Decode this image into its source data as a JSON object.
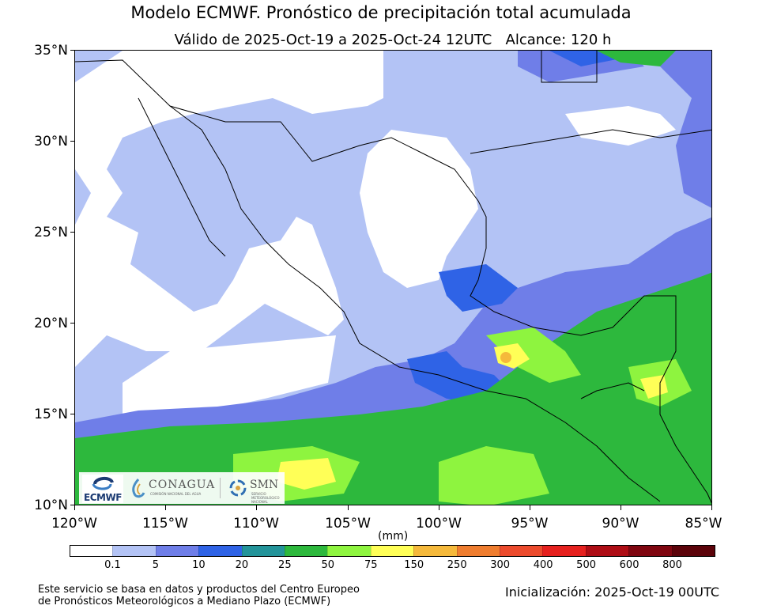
{
  "header": {
    "title": "Modelo ECMWF. Pronóstico de precipitación total acumulada",
    "subtitle": "Válido de 2025-Oct-19 a 2025-Oct-24 12UTC   Alcance: 120 h"
  },
  "axes": {
    "lat_ticks": [
      "35°N",
      "30°N",
      "25°N",
      "20°N",
      "15°N",
      "10°N"
    ],
    "lon_ticks": [
      "120°W",
      "115°W",
      "110°W",
      "105°W",
      "100°W",
      "95°W",
      "90°W",
      "85°W"
    ],
    "lat_range": [
      10,
      35
    ],
    "lon_range": [
      -120,
      -85
    ]
  },
  "colorbar": {
    "units": "(mm)",
    "levels": [
      "0.1",
      "5",
      "10",
      "20",
      "25",
      "50",
      "75",
      "150",
      "250",
      "300",
      "400",
      "500",
      "600",
      "800"
    ],
    "colors": [
      "#ffffff",
      "#b3c3f5",
      "#6f7ee8",
      "#2f63e6",
      "#23949a",
      "#2db83d",
      "#8ef43f",
      "#ffff57",
      "#f5b93b",
      "#ef7d2f",
      "#ec4b2d",
      "#e6211f",
      "#ae0d15",
      "#7f0610",
      "#5c030a"
    ]
  },
  "logos": {
    "ecmwf": "ECMWF",
    "conagua": "CONAGUA",
    "conagua_sub": "COMISIÓN NACIONAL DEL AGUA",
    "smn": "SMN",
    "smn_sub": "SERVICIO METEOROLÓGICO NACIONAL"
  },
  "footer": {
    "source_line1": "Este servicio se basa en datos y productos del Centro Europeo",
    "source_line2": "de Pronósticos Meteorológicos a Mediano Plazo (ECMWF)",
    "initialization": "Inicialización: 2025-Oct-19 00UTC"
  }
}
